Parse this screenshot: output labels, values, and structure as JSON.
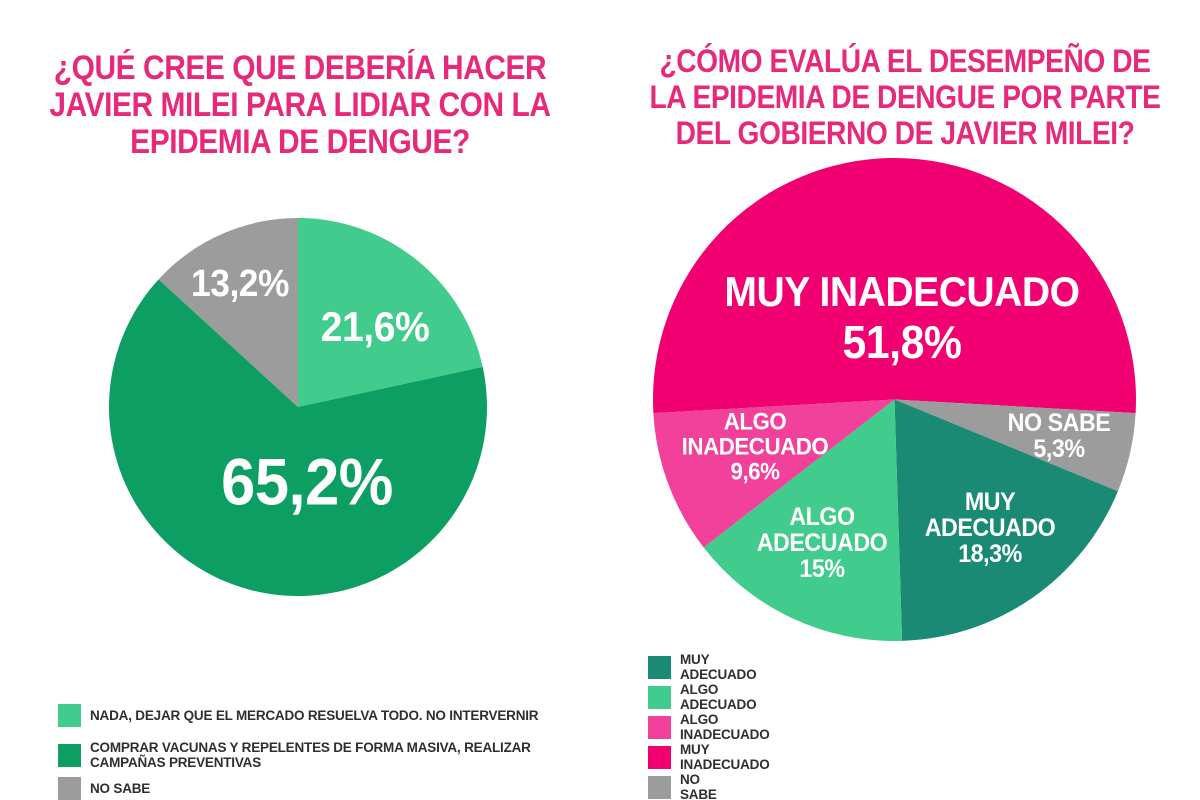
{
  "page": {
    "background": "#ffffff"
  },
  "palette": {
    "title_pink": "#e7297b",
    "magenta": "#f10072",
    "pink": "#f2419b",
    "light_green": "#41cb8c",
    "green": "#0d9e63",
    "teal": "#1a8a75",
    "gray": "#9c9c9c",
    "label_white": "#ffffff",
    "legend_text": "#2f2f2e"
  },
  "chart_data": [
    {
      "type": "pie",
      "title": "¿QUÉ CREE QUE DEBERÍA HACER JAVIER MILEI PARA LIDIAR CON LA EPIDEMIA DE DENGUE?",
      "title_lines": [
        "¿QUÉ CREE QUE DEBERÍA HACER",
        "JAVIER MILEI PARA LIDIAR CON LA",
        "EPIDEMIA DE DENGUE?"
      ],
      "start_angle_deg": 0,
      "legend_position": "bottom-left",
      "slices": [
        {
          "label": "NADA, DEJAR QUE EL MERCADO RESUELVA TODO. NO INTERVERNIR",
          "value": 21.6,
          "value_text": "21,6%",
          "color": "#41cb8c"
        },
        {
          "label": "COMPRAR VACUNAS Y REPELENTES DE FORMA MASIVA, REALIZAR CAMPAÑAS PREVENTIVAS",
          "value": 65.2,
          "value_text": "65,2%",
          "color": "#0d9e63"
        },
        {
          "label": "NO SABE",
          "value": 13.2,
          "value_text": "13,2%",
          "color": "#9c9c9c"
        }
      ],
      "legend": [
        {
          "label": "NADA, DEJAR QUE EL MERCADO RESUELVA TODO. NO INTERVERNIR",
          "color": "#41cb8c"
        },
        {
          "label": "COMPRAR VACUNAS Y REPELENTES DE FORMA MASIVA, REALIZAR CAMPAÑAS PREVENTIVAS",
          "color": "#0d9e63"
        },
        {
          "label": "NO SABE",
          "color": "#9c9c9c"
        }
      ]
    },
    {
      "type": "pie",
      "title": "¿CÓMO EVALÚA EL DESEMPEÑO DE LA EPIDEMIA DE DENGUE POR PARTE DEL GOBIERNO DE JAVIER MILEI?",
      "title_lines": [
        "¿CÓMO EVALÚA EL DESEMPEÑO DE",
        "LA EPIDEMIA DE DENGUE POR PARTE",
        "DEL GOBIERNO DE JAVIER MILEI?"
      ],
      "start_angle_deg": -93.24,
      "legend_position": "bottom-left",
      "slices": [
        {
          "label": "MUY INADECUADO",
          "label_lines": [
            "MUY INADECUADO"
          ],
          "value": 51.8,
          "value_text": "51,8%",
          "color": "#f10072"
        },
        {
          "label": "NO SABE",
          "label_lines": [
            "NO SABE"
          ],
          "value": 5.3,
          "value_text": "5,3%",
          "color": "#9c9c9c"
        },
        {
          "label": "MUY ADECUADO",
          "label_lines": [
            "MUY",
            "ADECUADO"
          ],
          "value": 18.3,
          "value_text": "18,3%",
          "color": "#1a8a75"
        },
        {
          "label": "ALGO ADECUADO",
          "label_lines": [
            "ALGO",
            "ADECUADO"
          ],
          "value": 15,
          "value_text": "15%",
          "color": "#41cb8c"
        },
        {
          "label": "ALGO INADECUADO",
          "label_lines": [
            "ALGO",
            "INADECUADO"
          ],
          "value": 9.6,
          "value_text": "9,6%",
          "color": "#f2419b"
        }
      ],
      "legend": [
        {
          "label": "MUY ADECUADO",
          "color": "#1a8a75"
        },
        {
          "label": "ALGO ADECUADO",
          "color": "#41cb8c"
        },
        {
          "label": "ALGO INADECUADO",
          "color": "#f2419b"
        },
        {
          "label": "MUY INADECUADO",
          "color": "#f10072"
        },
        {
          "label": "NO SABE",
          "color": "#9c9c9c"
        }
      ]
    }
  ]
}
